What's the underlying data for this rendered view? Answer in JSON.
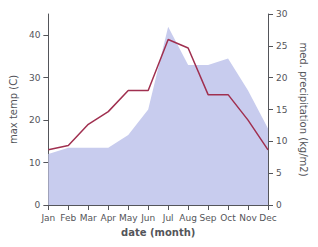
{
  "chart_data": {
    "type": "line",
    "xlabel": "date (month)",
    "ylabel": "max temp (C)",
    "y2label": "med. precipitation (kg/m2)",
    "categories": [
      "Jan",
      "Feb",
      "Mar",
      "Apr",
      "May",
      "Jun",
      "Jul",
      "Aug",
      "Sep",
      "Oct",
      "Nov",
      "Dec"
    ],
    "series": [
      {
        "type": "area",
        "axis": "y2",
        "color": "#c8ccee",
        "values": [
          8,
          9,
          9,
          9,
          11,
          15,
          28,
          22,
          22,
          23,
          18,
          12
        ]
      },
      {
        "type": "line",
        "axis": "y",
        "color": "#a03050",
        "values": [
          13,
          14,
          19,
          22,
          27,
          27,
          39,
          37,
          26,
          26,
          20,
          13
        ]
      }
    ],
    "ylim": [
      0,
      45
    ],
    "yticks": [
      0,
      10,
      20,
      30,
      40
    ],
    "y2lim": [
      0,
      30
    ],
    "y2ticks": [
      0,
      5,
      10,
      15,
      20,
      25,
      30
    ],
    "grid": false
  }
}
